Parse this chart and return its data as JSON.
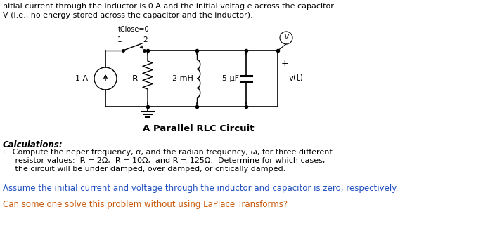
{
  "line1": "nitial current through the inductor is 0 A and the initial voltag e across the capacitor",
  "line2": "V (i.e., no energy stored across the capacitor and the inductor).",
  "circuit_label": "A Parallel RLC Circuit",
  "calc_header": "Calculations:",
  "assume_line": "Assume the initial current and voltage through the inductor and capacitor is zero, respectively.",
  "can_line": "Can some one solve this problem without using LaPlace Transforms?",
  "text_color_black": "#000000",
  "text_color_blue": "#1F4FBF",
  "text_color_orange": "#C8580A",
  "bg_color": "#ffffff",
  "tClose_label": "tClose=0",
  "switch_1": "1",
  "switch_2": "2",
  "source_label": "1 A",
  "R_label": "R",
  "L_label": "2 mH",
  "C_label": "5 μF",
  "v_label": "v(t)",
  "plus_label": "+",
  "minus_label": "-"
}
